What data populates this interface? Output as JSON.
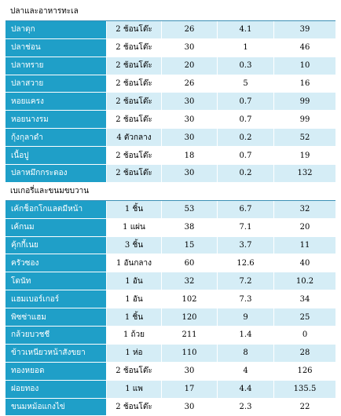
{
  "sections": [
    {
      "title": "ปลาและอาหารทะเล",
      "rows": [
        [
          "ปลาดุก",
          "2 ช้อนโต๊ะ",
          "26",
          "4.1",
          "39"
        ],
        [
          "ปลาช่อน",
          "2 ช้อนโต๊ะ",
          "30",
          "1",
          "46"
        ],
        [
          "ปลาทราย",
          "2 ช้อนโต๊ะ",
          "20",
          "0.3",
          "10"
        ],
        [
          "ปลาสวาย",
          "2 ช้อนโต๊ะ",
          "26",
          "5",
          "16"
        ],
        [
          "หอยแครง",
          "2 ช้อนโต๊ะ",
          "30",
          "0.7",
          "99"
        ],
        [
          "หอยนางรม",
          "2 ช้อนโต๊ะ",
          "30",
          "0.7",
          "99"
        ],
        [
          "กุ้งกุลาดำ",
          "4 ตัวกลาง",
          "30",
          "0.2",
          "52"
        ],
        [
          "เนื้อปู",
          "2 ช้อนโต๊ะ",
          "18",
          "0.7",
          "19"
        ],
        [
          "ปลาหมึกกระดอง",
          "2 ช้อนโต๊ะ",
          "30",
          "0.2",
          "132"
        ]
      ]
    },
    {
      "title": "เบเกอรี่และขนมขบวาน",
      "rows": [
        [
          "เค้กช็อกโกแลตมีหน้า",
          "1 ชิ้น",
          "53",
          "6.7",
          "32"
        ],
        [
          "เค้กนม",
          "1 แผ่น",
          "38",
          "7.1",
          "20"
        ],
        [
          "คุ้กกี้เนย",
          "3 ชิ้น",
          "15",
          "3.7",
          "11"
        ],
        [
          "ครัวซอง",
          "1 อันกลาง",
          "60",
          "12.6",
          "40"
        ],
        [
          "โดนัท",
          "1 อัน",
          "32",
          "7.2",
          "10.2"
        ],
        [
          "แฮมเบอร์เกอร์",
          "1 อัน",
          "102",
          "7.3",
          "34"
        ],
        [
          "พิซซ่าแฮม",
          "1 ชิ้น",
          "120",
          "9",
          "25"
        ],
        [
          "กล้วยบวชชี",
          "1 ถ้วย",
          "211",
          "1.4",
          "0"
        ],
        [
          "ข้าวเหนียวหน้าสังขยา",
          "1 ห่อ",
          "110",
          "8",
          "28"
        ],
        [
          "ทองหยอด",
          "2 ช้อนโต๊ะ",
          "30",
          "4",
          "126"
        ],
        [
          "ฝอยทอง",
          "1 แพ",
          "17",
          "4.4",
          "135.5"
        ],
        [
          "ขนมหม้อแกงไข่",
          "2 ช้อนโต๊ะ",
          "30",
          "2.3",
          "22"
        ]
      ]
    }
  ]
}
